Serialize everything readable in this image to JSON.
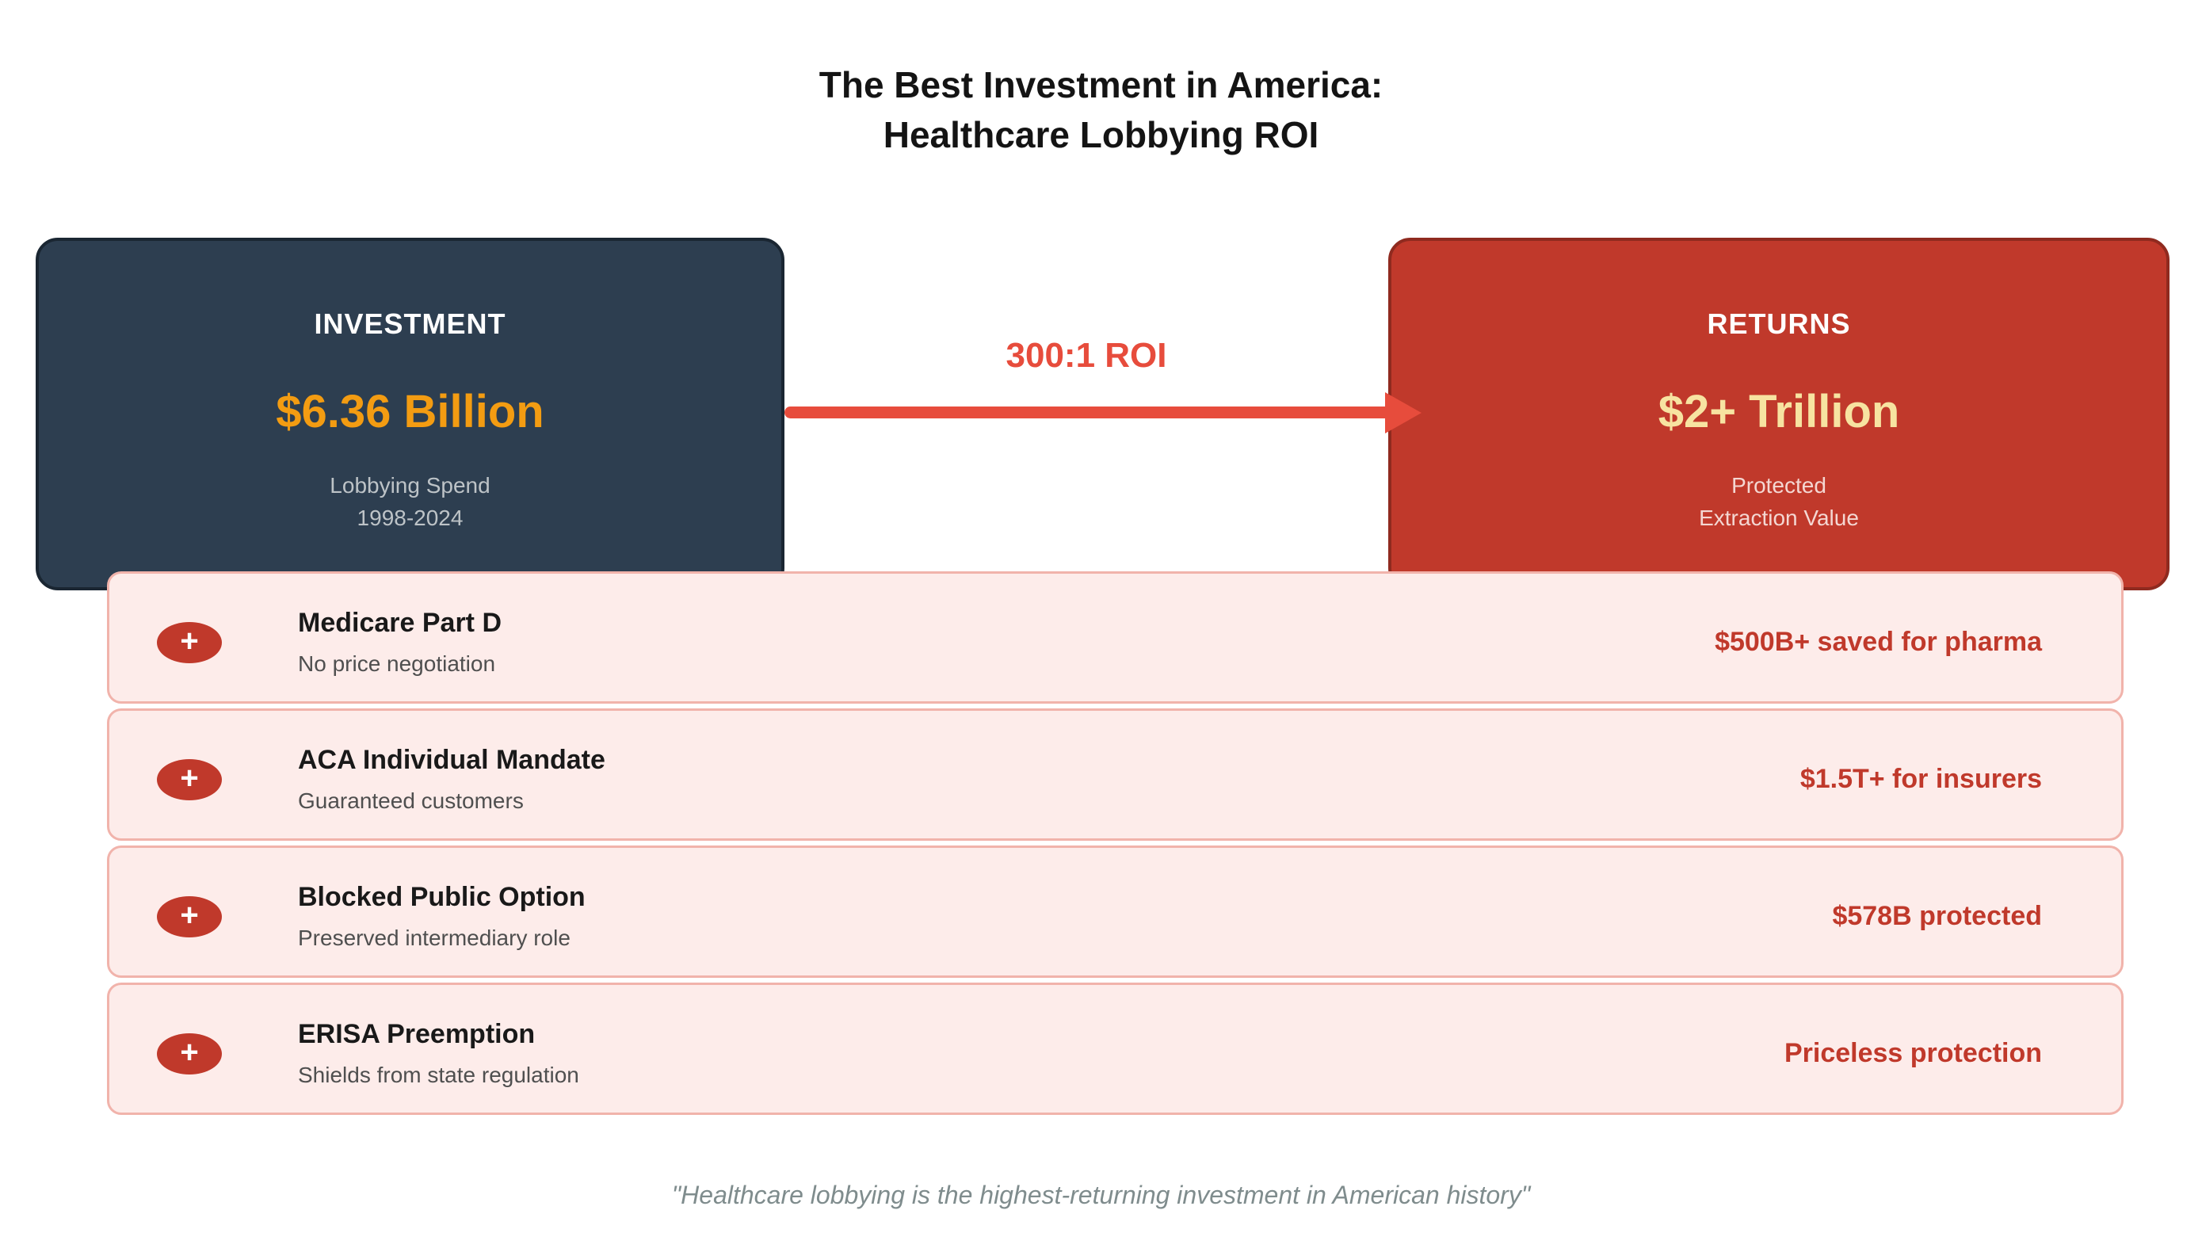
{
  "title": {
    "line1": "The Best Investment in America:",
    "line2": "Healthcare Lobbying ROI"
  },
  "investment_box": {
    "heading": "INVESTMENT",
    "amount": "$6.36 Billion",
    "subtitle_line1": "Lobbying Spend",
    "subtitle_line2": "1998-2024"
  },
  "returns_box": {
    "heading": "RETURNS",
    "amount": "$2+ Trillion",
    "subtitle_line1": "Protected",
    "subtitle_line2": "Extraction Value"
  },
  "roi_arrow": {
    "label": "300:1 ROI"
  },
  "mechanisms": [
    {
      "icon": "+",
      "title": "Medicare Part D",
      "subtitle": "No price negotiation",
      "value": "$500B+ saved for pharma"
    },
    {
      "icon": "+",
      "title": "ACA Individual Mandate",
      "subtitle": "Guaranteed customers",
      "value": "$1.5T+ for insurers"
    },
    {
      "icon": "+",
      "title": "Blocked Public Option",
      "subtitle": "Preserved intermediary role",
      "value": "$578B protected"
    },
    {
      "icon": "+",
      "title": "ERISA Preemption",
      "subtitle": "Shields from state regulation",
      "value": "Priceless protection"
    }
  ],
  "quote": "\"Healthcare lobbying is the highest-returning investment in American history\"",
  "colors": {
    "investment_box_bg": "#2d3e50",
    "investment_box_border": "#1a2632",
    "investment_amount": "#f39c12",
    "returns_box_bg": "#c0392b",
    "returns_box_border": "#8f2a1f",
    "returns_amount": "#f7e3a1",
    "arrow": "#e74c3c",
    "row_bg": "#fdecea",
    "row_border": "#f1b3ab",
    "row_value": "#c0392b",
    "badge_bg": "#c0392b",
    "quote_text": "#7f8c8d"
  }
}
